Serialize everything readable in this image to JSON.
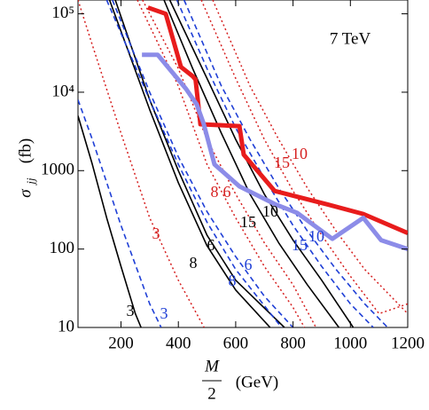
{
  "chart_data": {
    "type": "line",
    "annotation": "7 TeV",
    "x_label_numerator": "M",
    "x_label_denominator": "2",
    "x_label_unit": "(GeV)",
    "y_label_symbol": "σ",
    "y_label_subscript": "jj",
    "y_label_unit": "(fb)",
    "log_y": true,
    "xlim": [
      50,
      1200
    ],
    "xticks": [
      200,
      400,
      600,
      800,
      1000,
      1200
    ],
    "ylim": [
      10,
      150000
    ],
    "yticks": [
      10,
      100,
      1000,
      {
        "value": 10000,
        "label": "10⁴"
      },
      {
        "value": 100000,
        "label": "10⁵"
      }
    ],
    "series": [
      {
        "name": "3",
        "color": "#000000",
        "style": "solid",
        "x": [
          50,
          100,
          150,
          200,
          250,
          270
        ],
        "values": [
          5000,
          1200,
          250,
          60,
          15,
          10
        ]
      },
      {
        "name": "3",
        "color": "#1f3fd6",
        "style": "dashed",
        "x": [
          50,
          100,
          200,
          300,
          340
        ],
        "values": [
          8000,
          2500,
          200,
          20,
          10
        ]
      },
      {
        "name": "3",
        "color": "#d62020",
        "style": "dotted",
        "x": [
          50,
          100,
          200,
          300,
          400,
          490
        ],
        "values": [
          150000,
          40000,
          3000,
          250,
          40,
          10
        ]
      },
      {
        "name": "8",
        "color": "#000000",
        "style": "solid",
        "x": [
          160,
          300,
          400,
          500,
          600,
          720
        ],
        "values": [
          150000,
          6000,
          700,
          110,
          30,
          10
        ]
      },
      {
        "name": "6",
        "color": "#000000",
        "style": "solid",
        "x": [
          180,
          300,
          400,
          500,
          600,
          770
        ],
        "values": [
          150000,
          8000,
          1000,
          150,
          40,
          10
        ]
      },
      {
        "name": "8",
        "color": "#1f3fd6",
        "style": "dashed",
        "x": [
          150,
          300,
          400,
          500,
          600,
          760
        ],
        "values": [
          150000,
          8000,
          1200,
          220,
          55,
          10
        ]
      },
      {
        "name": "6",
        "color": "#1f3fd6",
        "style": "dashed",
        "x": [
          170,
          300,
          400,
          500,
          600,
          700,
          800
        ],
        "values": [
          150000,
          10000,
          1500,
          300,
          80,
          25,
          10
        ]
      },
      {
        "name": "8",
        "color": "#d62020",
        "style": "dotted",
        "x": [
          257,
          400,
          500,
          600,
          700,
          800,
          840
        ],
        "values": [
          150000,
          12000,
          1200,
          250,
          60,
          18,
          10
        ]
      },
      {
        "name": "6",
        "color": "#d62020",
        "style": "dotted",
        "x": [
          275,
          400,
          500,
          600,
          700,
          800,
          880
        ],
        "values": [
          150000,
          20000,
          2500,
          500,
          120,
          35,
          10
        ]
      },
      {
        "name": "15",
        "color": "#000000",
        "style": "solid",
        "x": [
          350,
          450,
          550,
          650,
          750,
          850,
          960
        ],
        "values": [
          150000,
          20000,
          3000,
          500,
          120,
          35,
          10
        ]
      },
      {
        "name": "10",
        "color": "#000000",
        "style": "solid",
        "x": [
          370,
          500,
          600,
          700,
          800,
          900,
          1010
        ],
        "values": [
          150000,
          15000,
          2500,
          500,
          130,
          40,
          10
        ]
      },
      {
        "name": "15",
        "color": "#1f3fd6",
        "style": "dashed",
        "x": [
          395,
          500,
          600,
          700,
          800,
          900,
          1000,
          1080
        ],
        "values": [
          150000,
          20000,
          3500,
          800,
          200,
          60,
          20,
          10
        ]
      },
      {
        "name": "10",
        "color": "#1f3fd6",
        "style": "dashed",
        "x": [
          420,
          550,
          650,
          750,
          850,
          950,
          1050,
          1130
        ],
        "values": [
          150000,
          12000,
          2500,
          600,
          170,
          55,
          20,
          10
        ]
      },
      {
        "name": "15",
        "color": "#d62020",
        "style": "dotted",
        "x": [
          480,
          600,
          700,
          800,
          900,
          1000,
          1100,
          1200
        ],
        "values": [
          150000,
          15000,
          2500,
          550,
          150,
          45,
          15,
          20
        ]
      },
      {
        "name": "10",
        "color": "#d62020",
        "style": "dotted",
        "x": [
          520,
          650,
          750,
          850,
          950,
          1050,
          1200
        ],
        "values": [
          150000,
          12000,
          2500,
          600,
          170,
          55,
          15
        ]
      },
      {
        "color": "#e81c1c",
        "style": "thick",
        "x": [
          294,
          356,
          409,
          450,
          460,
          477,
          613,
          628,
          736,
          921,
          1045,
          1200
        ],
        "values": [
          120000,
          100000,
          21000,
          16000,
          14500,
          3900,
          3700,
          1600,
          550,
          370,
          280,
          160
        ]
      },
      {
        "color": "#8c8ce8",
        "style": "thick",
        "x": [
          273,
          328,
          427,
          464,
          488,
          526,
          613,
          736,
          814,
          937,
          1045,
          1107,
          1200
        ],
        "values": [
          30000,
          30000,
          11000,
          7000,
          4000,
          1200,
          630,
          375,
          290,
          135,
          250,
          130,
          100
        ]
      }
    ]
  }
}
